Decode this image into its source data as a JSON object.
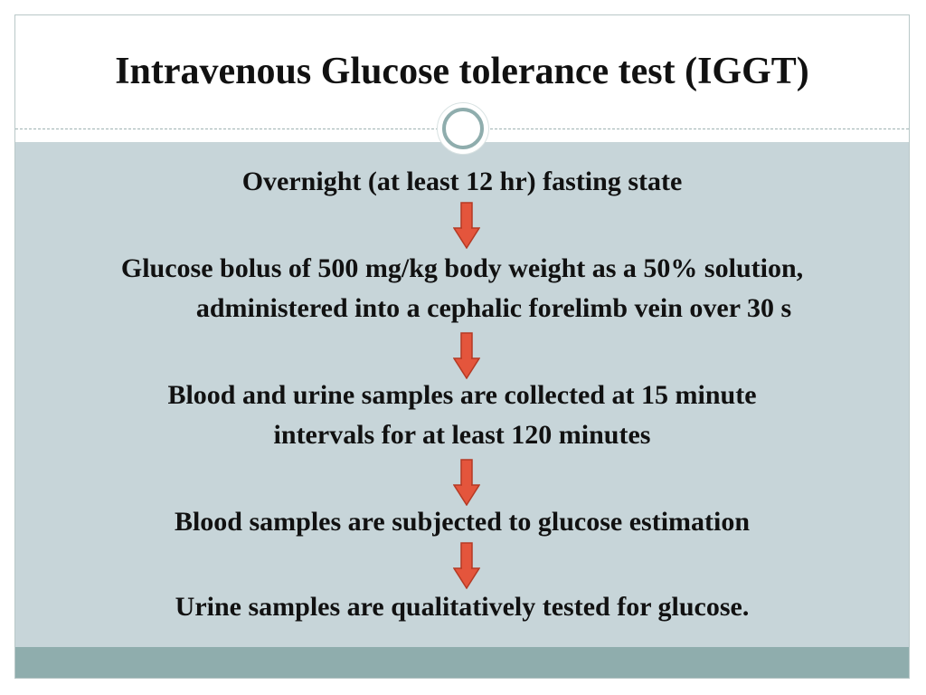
{
  "slide": {
    "title": "Intravenous Glucose tolerance test (IGGT)"
  },
  "flow": {
    "step1": "Overnight (at least 12 hr) fasting state",
    "step2_line1": "Glucose bolus of 500 mg/kg body weight as a 50% solution,",
    "step2_line2": "administered into a cephalic forelimb vein over 30 s",
    "step3_line1": "Blood and urine samples are collected at 15 minute",
    "step3_line2": "intervals for at least 120 minutes",
    "step4": "Blood samples are subjected to glucose estimation",
    "step5": "Urine samples are qualitatively tested for glucose."
  },
  "colors": {
    "content_background": "#c7d5d9",
    "bottom_band": "#8fadad",
    "arrow_fill": "#e4553c",
    "arrow_outline": "#b53a24"
  }
}
